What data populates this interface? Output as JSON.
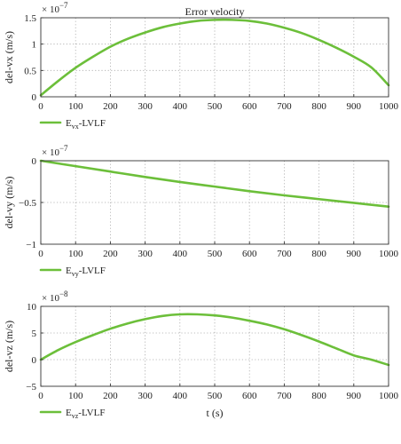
{
  "colors": {
    "series": "#6cbf3a",
    "axis": "#333333",
    "grid": "#a8a8a8"
  },
  "chart_data": [
    {
      "type": "line",
      "title": "Error velocity",
      "xlabel": "",
      "ylabel": "del-vx (m/s)",
      "exponent_base": "× 10",
      "exponent_power": "−7",
      "xlim": [
        0,
        1000
      ],
      "ylim": [
        0,
        1.5
      ],
      "xticks": [
        "0",
        "100",
        "200",
        "300",
        "400",
        "500",
        "600",
        "700",
        "800",
        "900",
        "1000"
      ],
      "yticks": [
        "0",
        "0.5",
        "1",
        "1.5"
      ],
      "grid": true,
      "legend": {
        "placement": "below",
        "main": "E",
        "sub": "vx",
        "suffix": "-LVLF"
      },
      "series": [
        {
          "x": [
            0,
            50,
            100,
            150,
            200,
            250,
            300,
            350,
            400,
            450,
            500,
            550,
            600,
            650,
            700,
            750,
            800,
            850,
            900,
            950,
            1000
          ],
          "values": [
            0.03,
            0.3,
            0.55,
            0.76,
            0.95,
            1.1,
            1.22,
            1.32,
            1.39,
            1.44,
            1.46,
            1.46,
            1.44,
            1.39,
            1.31,
            1.21,
            1.08,
            0.93,
            0.76,
            0.56,
            0.22
          ]
        }
      ]
    },
    {
      "type": "line",
      "title": "",
      "xlabel": "",
      "ylabel": "del-vy (m/s)",
      "exponent_base": "× 10",
      "exponent_power": "−7",
      "xlim": [
        0,
        1000
      ],
      "ylim": [
        -1,
        0
      ],
      "xticks": [
        "0",
        "100",
        "200",
        "300",
        "400",
        "500",
        "600",
        "700",
        "800",
        "900",
        "1000"
      ],
      "yticks": [
        "−1",
        "−0.5",
        "0"
      ],
      "grid": true,
      "legend": {
        "placement": "below",
        "main": "E",
        "sub": "vy",
        "suffix": "-LVLF"
      },
      "series": [
        {
          "x": [
            0,
            100,
            200,
            300,
            400,
            500,
            600,
            700,
            800,
            900,
            1000
          ],
          "values": [
            0,
            -0.065,
            -0.13,
            -0.195,
            -0.255,
            -0.31,
            -0.365,
            -0.415,
            -0.46,
            -0.505,
            -0.55
          ]
        }
      ]
    },
    {
      "type": "line",
      "title": "",
      "xlabel": "t (s)",
      "ylabel": "del-vz (m/s)",
      "exponent_base": "× 10",
      "exponent_power": "−8",
      "xlim": [
        0,
        1000
      ],
      "ylim": [
        -5,
        10
      ],
      "xticks": [
        "0",
        "100",
        "200",
        "300",
        "400",
        "500",
        "600",
        "700",
        "800",
        "900",
        "1000"
      ],
      "yticks": [
        "−5",
        "0",
        "5",
        "10"
      ],
      "grid": true,
      "legend": {
        "placement": "below",
        "main": "E",
        "sub": "vz",
        "suffix": "-LVLF"
      },
      "series": [
        {
          "x": [
            0,
            50,
            100,
            150,
            200,
            250,
            300,
            350,
            400,
            450,
            500,
            550,
            600,
            650,
            700,
            750,
            800,
            850,
            900,
            950,
            1000
          ],
          "values": [
            0,
            1.8,
            3.3,
            4.6,
            5.8,
            6.8,
            7.6,
            8.2,
            8.5,
            8.5,
            8.3,
            7.9,
            7.3,
            6.6,
            5.7,
            4.6,
            3.4,
            2.1,
            0.8,
            0,
            -1.0
          ]
        }
      ]
    }
  ]
}
